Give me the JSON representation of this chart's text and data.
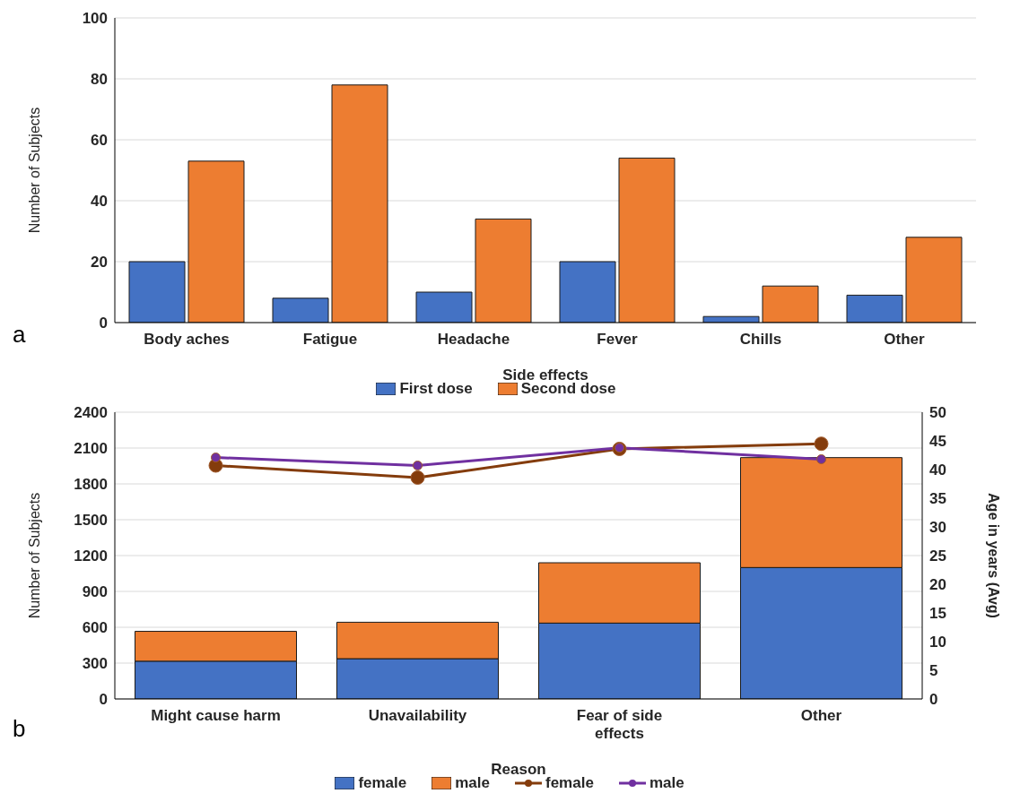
{
  "chart_data": [
    {
      "type": "bar",
      "xlabel": "Side effects",
      "ylabel": "Number of Subjects",
      "categories": [
        "Body aches",
        "Fatigue",
        "Headache",
        "Fever",
        "Chills",
        "Other"
      ],
      "series": [
        {
          "name": "First dose",
          "color": "#4472c4",
          "values": [
            20,
            8,
            10,
            20,
            2,
            9
          ]
        },
        {
          "name": "Second dose",
          "color": "#ed7d31",
          "values": [
            53,
            78,
            34,
            54,
            12,
            28
          ]
        }
      ],
      "ylim": [
        0,
        100
      ],
      "yticks": [
        0,
        20,
        40,
        60,
        80,
        100
      ],
      "grid": "y",
      "legend": "bottom",
      "annotations": [
        "a"
      ]
    },
    {
      "type": "bar",
      "stacked": true,
      "xlabel": "Reason",
      "ylabel": "Number of Subjects",
      "y2label": "Age in years (Avg)",
      "categories": [
        "Might cause harm",
        "Unavailability",
        "Fear of side effects",
        "Other"
      ],
      "series": [
        {
          "name": "female",
          "color": "#4472c4",
          "values": [
            316,
            337,
            635,
            1100
          ]
        },
        {
          "name": "male",
          "color": "#ed7d31",
          "values": [
            250,
            305,
            505,
            920
          ]
        },
        {
          "name": "female",
          "type": "line",
          "axis": "y2",
          "color": "#843c0c",
          "values": [
            40.7,
            38.6,
            43.6,
            44.5
          ]
        },
        {
          "name": "male",
          "type": "line",
          "axis": "y2",
          "color": "#7030a0",
          "values": [
            42.1,
            40.7,
            43.8,
            41.8
          ]
        }
      ],
      "ylim": [
        0,
        2400
      ],
      "yticks": [
        0,
        300,
        600,
        900,
        1200,
        1500,
        1800,
        2100,
        2400
      ],
      "y2lim": [
        0,
        50
      ],
      "y2ticks": [
        0,
        5,
        10,
        15,
        20,
        25,
        30,
        35,
        40,
        45,
        50
      ],
      "grid": "y",
      "legend": "bottom",
      "marker": "circle",
      "annotations": [
        "b"
      ]
    }
  ]
}
